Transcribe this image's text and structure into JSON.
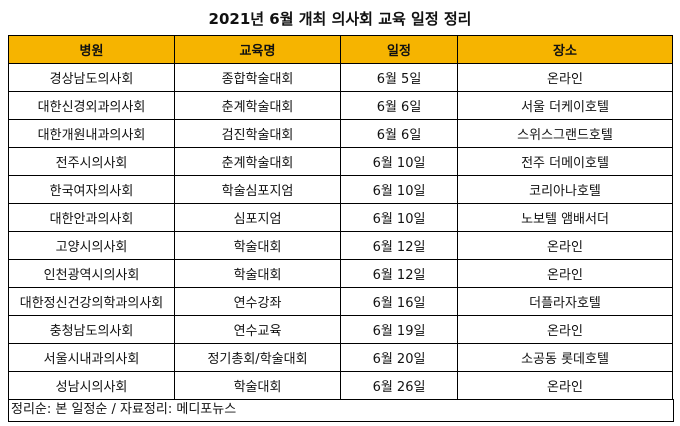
{
  "title": "2021년 6월 개최 의사회 교육 일정 정리",
  "columns": [
    "병원",
    "교육명",
    "일정",
    "장소"
  ],
  "rows": [
    [
      "경상남도의사회",
      "종합학술대회",
      "6월 5일",
      "온라인"
    ],
    [
      "대한신경외과의사회",
      "춘계학술대회",
      "6월 6일",
      "서울 더케이호텔"
    ],
    [
      "대한개원내과의사회",
      "검진학술대회",
      "6월 6일",
      "스위스그랜드호텔"
    ],
    [
      "전주시의사회",
      "춘계학술대회",
      "6월 10일",
      "전주 더메이호텔"
    ],
    [
      "한국여자의사회",
      "학술심포지엄",
      "6월 10일",
      "코리아나호텔"
    ],
    [
      "대한안과의사회",
      "심포지엄",
      "6월 10일",
      "노보텔 앰배서더"
    ],
    [
      "고양시의사회",
      "학술대회",
      "6월 12일",
      "온라인"
    ],
    [
      "인천광역시의사회",
      "학술대회",
      "6월 12일",
      "온라인"
    ],
    [
      "대한정신건강의학과의사회",
      "연수강좌",
      "6월 16일",
      "더플라자호텔"
    ],
    [
      "충청남도의사회",
      "연수교육",
      "6월 19일",
      "온라인"
    ],
    [
      "서울시내과의사회",
      "정기총회/학술대회",
      "6월 20일",
      "소공동 롯데호텔"
    ],
    [
      "성남시의사회",
      "학술대회",
      "6월 26일",
      "온라인"
    ]
  ],
  "footer": "정리순: 본 일정순 / 자료정리: 메디포뉴스",
  "colors": {
    "header_bg": "#f6b400",
    "border": "#000000"
  }
}
